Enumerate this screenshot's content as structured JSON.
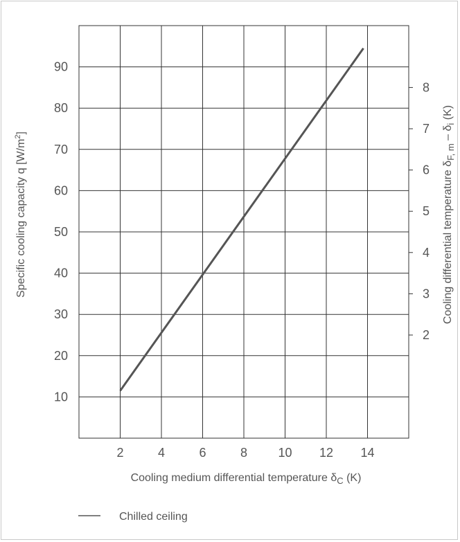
{
  "chart_data": {
    "type": "line",
    "xlabel": "Cooling medium differential temperature δ",
    "xlabel_sub": "C",
    "xlabel_unit": " (K)",
    "ylabel": "Specific cooling capacity q [W/m",
    "ylabel_sup": "2",
    "ylabel_end": "]",
    "y2label": "Cooling differential temperature δ",
    "y2label_sub1": "F, m",
    "y2label_mid": " – δ",
    "y2label_sub2": "i",
    "y2label_unit": " (K)",
    "xlim": [
      0,
      16
    ],
    "ylim": [
      0,
      100
    ],
    "xticks": [
      2,
      4,
      6,
      8,
      10,
      12,
      14
    ],
    "yticks": [
      10,
      20,
      30,
      40,
      50,
      60,
      70,
      80,
      90
    ],
    "y2ticks": [
      2,
      3,
      4,
      5,
      6,
      7,
      8
    ],
    "grid": true,
    "legend_position": "bottom-left",
    "series": [
      {
        "name": "Chilled ceiling",
        "color": "#555555",
        "x": [
          2,
          13.8
        ],
        "y": [
          11.5,
          94.5
        ]
      }
    ]
  }
}
